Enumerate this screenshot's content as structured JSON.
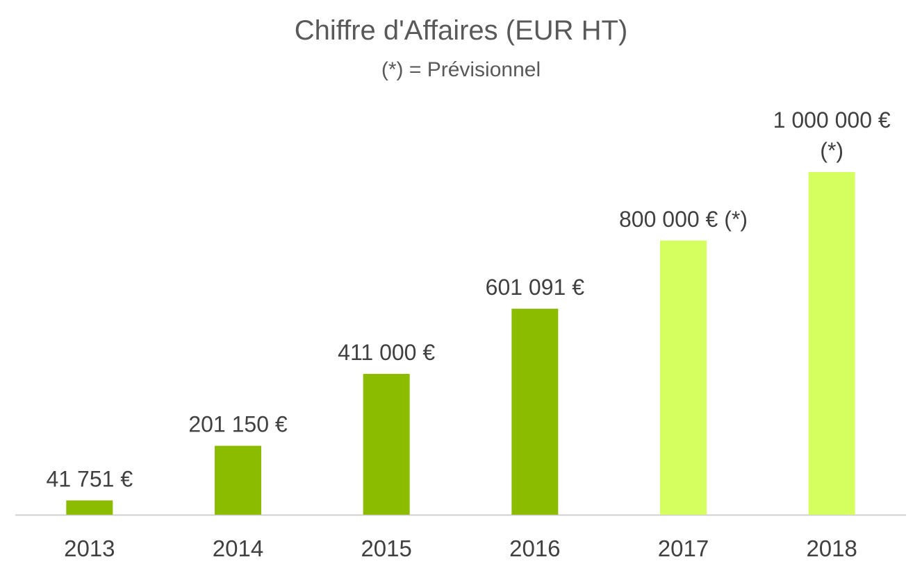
{
  "colors": {
    "actual": "#8cbc00",
    "forecast": "#d4ff5e",
    "text": "#404040",
    "title": "#595959",
    "axis": "#d0d0d0"
  },
  "chart_data": {
    "type": "bar",
    "title": "Chiffre d'Affaires (EUR HT)",
    "subtitle": "(*) = Prévisionnel",
    "xlabel": "",
    "ylabel": "",
    "ylim": [
      0,
      1000000
    ],
    "grid": false,
    "categories": [
      "2013",
      "2014",
      "2015",
      "2016",
      "2017",
      "2018"
    ],
    "values": [
      41751,
      201150,
      411000,
      601091,
      800000,
      1000000
    ],
    "forecast": [
      false,
      false,
      false,
      false,
      true,
      true
    ],
    "data_labels": [
      [
        "41 751 €"
      ],
      [
        "201 150 €"
      ],
      [
        "411 000 €"
      ],
      [
        "601 091 €"
      ],
      [
        "800 000 € (*)"
      ],
      [
        "1 000 000 €",
        "(*)"
      ]
    ]
  }
}
